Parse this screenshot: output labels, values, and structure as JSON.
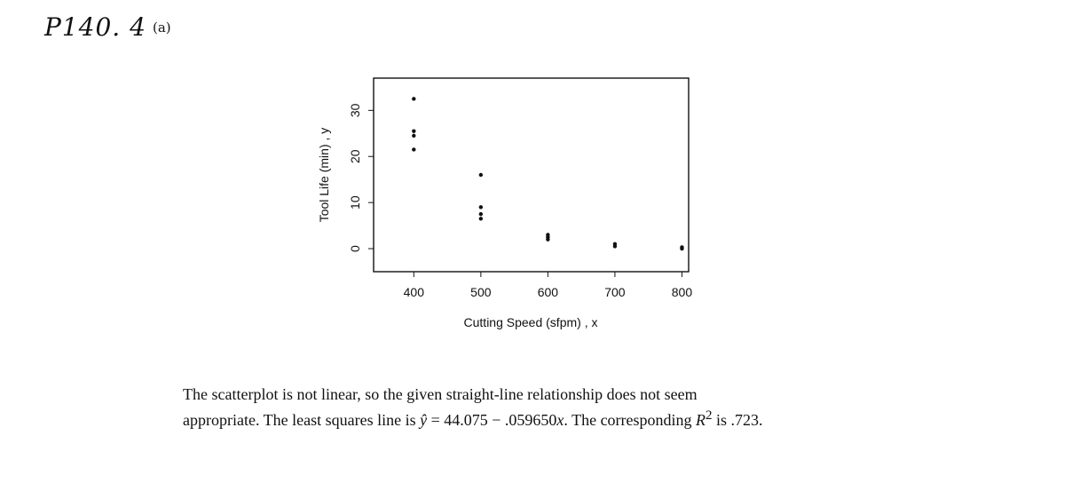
{
  "header": {
    "handwritten_label": "P140. 4",
    "part_label": "(a)"
  },
  "chart_data": {
    "type": "scatter",
    "xlabel": "Cutting Speed (sfpm) , x",
    "ylabel": "Tool Life (min) , y",
    "xlim": [
      340,
      810
    ],
    "ylim": [
      -5,
      37
    ],
    "xticks": [
      400,
      500,
      600,
      700,
      800
    ],
    "yticks": [
      0,
      10,
      20,
      30
    ],
    "grid": false,
    "points": [
      {
        "x": 400,
        "y": 32.5
      },
      {
        "x": 400,
        "y": 25.5
      },
      {
        "x": 400,
        "y": 24.5
      },
      {
        "x": 400,
        "y": 21.5
      },
      {
        "x": 500,
        "y": 16
      },
      {
        "x": 500,
        "y": 9
      },
      {
        "x": 500,
        "y": 7.5
      },
      {
        "x": 500,
        "y": 6.5
      },
      {
        "x": 600,
        "y": 3
      },
      {
        "x": 600,
        "y": 2.5
      },
      {
        "x": 600,
        "y": 2
      },
      {
        "x": 700,
        "y": 1
      },
      {
        "x": 700,
        "y": 0.5
      },
      {
        "x": 800,
        "y": 0.3
      },
      {
        "x": 800,
        "y": 0
      }
    ]
  },
  "caption": {
    "line1": "The scatterplot is not linear, so the given straight-line relationship does not seem",
    "line2_prefix": "appropriate. The least squares line is ",
    "yhat_symbol": "ŷ",
    "line2_equation": " = 44.075 − .059650",
    "x_symbol": "x",
    "line2_middle": ". The corresponding ",
    "r_symbol": "R",
    "r_sup": "2",
    "line2_suffix": " is .723."
  }
}
